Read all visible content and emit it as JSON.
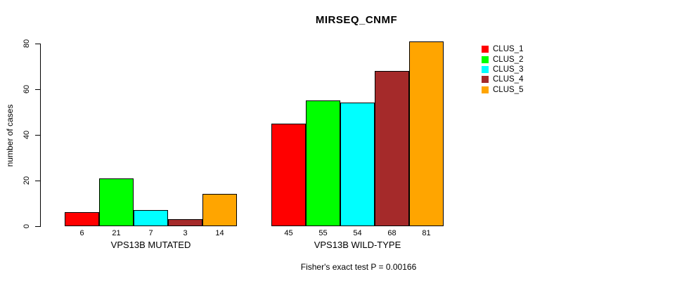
{
  "chart_data": {
    "type": "bar",
    "title": "MIRSEQ_CNMF",
    "ylabel": "number of cases",
    "xlabel": "",
    "ylim": [
      0,
      80
    ],
    "y_ticks": [
      0,
      20,
      40,
      60,
      80
    ],
    "grid": false,
    "legend_position": "top-right-outside",
    "bar_value_labels": true,
    "categories": [
      "VPS13B MUTATED",
      "VPS13B WILD-TYPE"
    ],
    "groups": [
      {
        "label": "VPS13B MUTATED",
        "values": [
          6,
          21,
          7,
          3,
          14
        ]
      },
      {
        "label": "VPS13B WILD-TYPE",
        "values": [
          45,
          55,
          54,
          68,
          81
        ]
      }
    ],
    "series": [
      {
        "name": "CLUS_1",
        "color": "#FF0000",
        "values": [
          6,
          45
        ]
      },
      {
        "name": "CLUS_2",
        "color": "#00FF00",
        "values": [
          21,
          55
        ]
      },
      {
        "name": "CLUS_3",
        "color": "#00FFFF",
        "values": [
          7,
          54
        ]
      },
      {
        "name": "CLUS_4",
        "color": "#A52A2A",
        "values": [
          3,
          68
        ]
      },
      {
        "name": "CLUS_5",
        "color": "#FFA500",
        "values": [
          14,
          81
        ]
      }
    ],
    "footnote": "Fisher's exact test P = 0.00166"
  }
}
